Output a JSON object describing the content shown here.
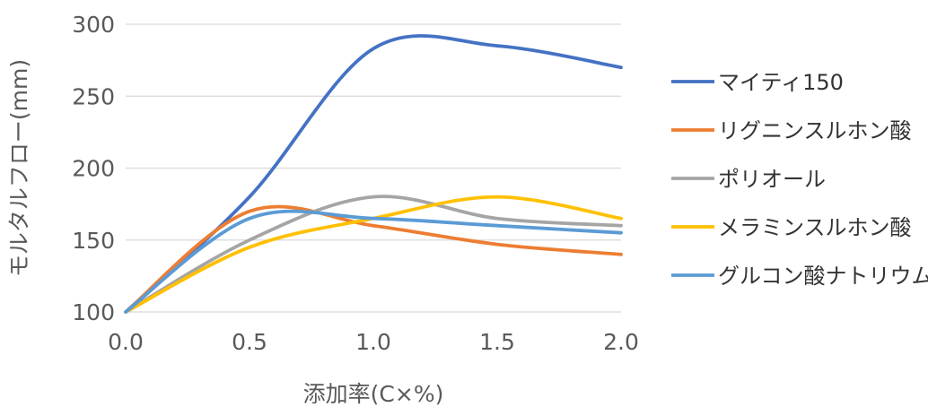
{
  "chart_data": {
    "type": "line",
    "title": "",
    "xlabel": "添加率(C×%)",
    "ylabel": "モルタルフロー(mm)",
    "xlim": [
      0.0,
      2.0
    ],
    "ylim": [
      100,
      300
    ],
    "x_ticks": [
      "0.0",
      "0.5",
      "1.0",
      "1.5",
      "2.0"
    ],
    "y_ticks": [
      "100",
      "150",
      "200",
      "250",
      "300"
    ],
    "grid": "horizontal",
    "legend_position": "right",
    "x": [
      0.0,
      0.5,
      1.0,
      1.5,
      2.0
    ],
    "series": [
      {
        "name": "マイティ150",
        "color": "#4472C4",
        "values": [
          100,
          180,
          283,
          285,
          270
        ]
      },
      {
        "name": "リグニンスルホン酸",
        "color": "#ED7D31",
        "values": [
          100,
          170,
          160,
          147,
          140
        ]
      },
      {
        "name": "ポリオール",
        "color": "#A5A5A5",
        "values": [
          100,
          150,
          180,
          165,
          160
        ]
      },
      {
        "name": "メラミンスルホン酸",
        "color": "#FFC000",
        "values": [
          100,
          145,
          165,
          180,
          165
        ]
      },
      {
        "name": "グルコン酸ナトリウム",
        "color": "#5B9BD5",
        "values": [
          100,
          165,
          165,
          160,
          155
        ]
      }
    ]
  }
}
